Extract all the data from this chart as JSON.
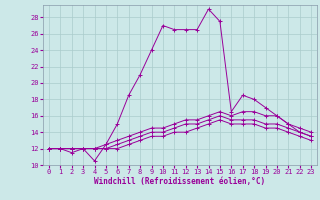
{
  "title": "",
  "xlabel": "Windchill (Refroidissement éolien,°C)",
  "bg_color": "#cce8e8",
  "line_color": "#990099",
  "grid_color": "#aacccc",
  "spine_color": "#8899aa",
  "xlim": [
    -0.5,
    23.5
  ],
  "ylim": [
    10,
    29.5
  ],
  "xticks": [
    0,
    1,
    2,
    3,
    4,
    5,
    6,
    7,
    8,
    9,
    10,
    11,
    12,
    13,
    14,
    15,
    16,
    17,
    18,
    19,
    20,
    21,
    22,
    23
  ],
  "yticks": [
    10,
    12,
    14,
    16,
    18,
    20,
    22,
    24,
    26,
    28
  ],
  "curves": [
    [
      12,
      12,
      11.5,
      12,
      10.5,
      12.5,
      15,
      18.5,
      21,
      24,
      27,
      26.5,
      26.5,
      26.5,
      29,
      27.5,
      16.5,
      18.5,
      18,
      17,
      16,
      15,
      14,
      13.5
    ],
    [
      12,
      12,
      12,
      12,
      12,
      12.5,
      13,
      13.5,
      14,
      14.5,
      14.5,
      15,
      15.5,
      15.5,
      16,
      16.5,
      16,
      16.5,
      16.5,
      16,
      16,
      15,
      14.5,
      14
    ],
    [
      12,
      12,
      12,
      12,
      12,
      12,
      12.5,
      13,
      13.5,
      14,
      14,
      14.5,
      15,
      15,
      15.5,
      16,
      15.5,
      15.5,
      15.5,
      15,
      15,
      14.5,
      14,
      13.5
    ],
    [
      12,
      12,
      12,
      12,
      12,
      12,
      12,
      12.5,
      13,
      13.5,
      13.5,
      14,
      14,
      14.5,
      15,
      15.5,
      15,
      15,
      15,
      14.5,
      14.5,
      14,
      13.5,
      13
    ]
  ],
  "tick_fontsize": 5.0,
  "xlabel_fontsize": 5.5,
  "xlabel_fontweight": "bold"
}
